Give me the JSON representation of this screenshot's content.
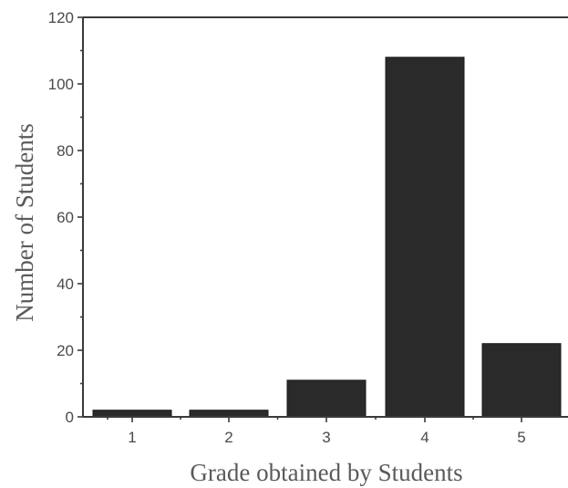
{
  "chart_data": {
    "type": "bar",
    "categories": [
      "1",
      "2",
      "3",
      "4",
      "5"
    ],
    "values": [
      2,
      2,
      11,
      108,
      22
    ],
    "xlabel": "Grade obtained by Students",
    "ylabel": "Number of Students",
    "ylim": [
      0,
      120
    ],
    "yticks": [
      "0",
      "20",
      "40",
      "60",
      "80",
      "100",
      "120"
    ],
    "grid": false,
    "bar_color": "#2a2a2a"
  }
}
